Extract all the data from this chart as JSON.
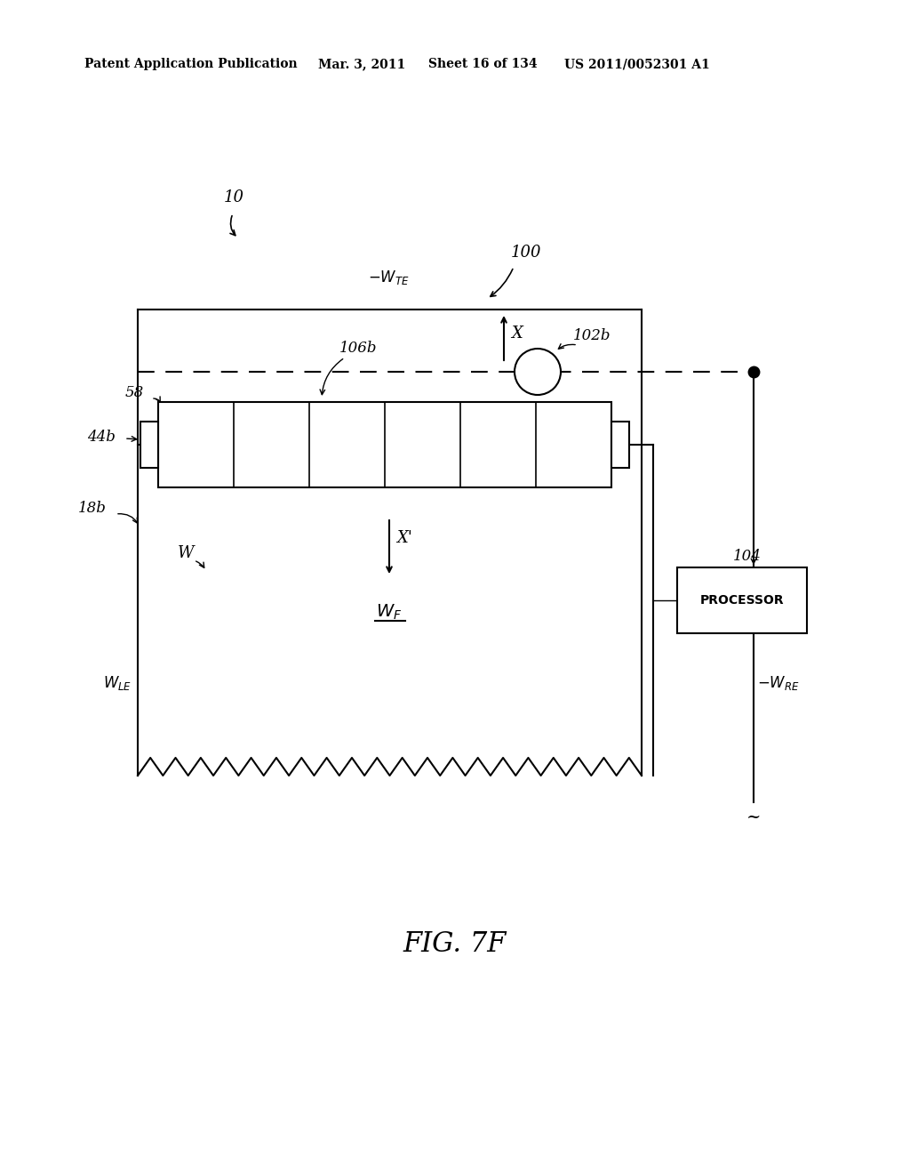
{
  "bg_color": "#ffffff",
  "line_color": "#000000",
  "header_text": "Patent Application Publication",
  "header_date": "Mar. 3, 2011",
  "header_sheet": "Sheet 16 of 134",
  "header_patent": "US 2011/0052301 A1",
  "fig_label": "FIG. 7F",
  "label_10": "10",
  "label_100": "100",
  "label_106b": "106b",
  "label_102b": "102b",
  "label_58": "58",
  "label_44b": "44b",
  "label_18b": "18b",
  "label_104": "104",
  "label_PROCESSOR": "PROCESSOR"
}
